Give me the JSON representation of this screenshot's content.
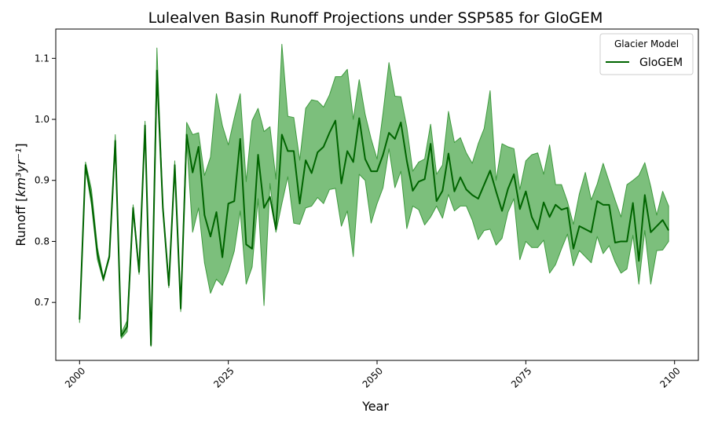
{
  "chart_data": {
    "type": "line",
    "title": "Lulealven Basin Runoff Projections under SSP585 for GloGEM",
    "xlabel": "Year",
    "ylabel_main": "Runoff [",
    "ylabel_units": "km³yr⁻¹",
    "ylabel_end": "]",
    "xlim": [
      1996,
      2104
    ],
    "ylim": [
      0.605,
      1.148
    ],
    "x_ticks": [
      2000,
      2025,
      2050,
      2075,
      2100
    ],
    "y_ticks": [
      0.7,
      0.8,
      0.9,
      1.0,
      1.1
    ],
    "y_tick_labels": [
      "0.7",
      "0.8",
      "0.9",
      "1.0",
      "1.1"
    ],
    "grid": false,
    "legend": {
      "title": "Glacier Model",
      "position": "top-right",
      "entries": [
        "GloGEM"
      ]
    },
    "colors": {
      "line": "#006400",
      "band_fill": "#7cbf7c",
      "band_edge": "#3f9a3f"
    },
    "series": [
      {
        "name": "GloGEM",
        "x": [
          2000,
          2001,
          2002,
          2003,
          2004,
          2005,
          2006,
          2007,
          2008,
          2009,
          2010,
          2011,
          2012,
          2013,
          2014,
          2015,
          2016,
          2017,
          2018,
          2019,
          2020,
          2021,
          2022,
          2023,
          2024,
          2025,
          2026,
          2027,
          2028,
          2029,
          2030,
          2031,
          2032,
          2033,
          2034,
          2035,
          2036,
          2037,
          2038,
          2039,
          2040,
          2041,
          2042,
          2043,
          2044,
          2045,
          2046,
          2047,
          2048,
          2049,
          2050,
          2051,
          2052,
          2053,
          2054,
          2055,
          2056,
          2057,
          2058,
          2059,
          2060,
          2061,
          2062,
          2063,
          2064,
          2065,
          2066,
          2067,
          2068,
          2069,
          2070,
          2071,
          2072,
          2073,
          2074,
          2075,
          2076,
          2077,
          2078,
          2079,
          2080,
          2081,
          2082,
          2083,
          2084,
          2085,
          2086,
          2087,
          2088,
          2089,
          2090,
          2091,
          2092,
          2093,
          2094,
          2095,
          2096,
          2097,
          2098,
          2099
        ],
        "mean": [
          0.672,
          0.925,
          0.87,
          0.78,
          0.738,
          0.775,
          0.965,
          0.645,
          0.66,
          0.855,
          0.75,
          0.99,
          0.63,
          1.08,
          0.855,
          0.728,
          0.925,
          0.69,
          0.975,
          0.913,
          0.955,
          0.843,
          0.808,
          0.848,
          0.774,
          0.862,
          0.866,
          0.968,
          0.795,
          0.788,
          0.942,
          0.855,
          0.873,
          0.82,
          0.975,
          0.948,
          0.948,
          0.862,
          0.933,
          0.912,
          0.946,
          0.955,
          0.978,
          0.998,
          0.895,
          0.948,
          0.93,
          1.002,
          0.935,
          0.915,
          0.915,
          0.942,
          0.978,
          0.968,
          0.995,
          0.932,
          0.883,
          0.898,
          0.902,
          0.96,
          0.866,
          0.883,
          0.944,
          0.882,
          0.905,
          0.885,
          0.876,
          0.87,
          0.893,
          0.916,
          0.882,
          0.85,
          0.886,
          0.91,
          0.853,
          0.882,
          0.84,
          0.82,
          0.864,
          0.84,
          0.86,
          0.852,
          0.855,
          0.788,
          0.825,
          0.82,
          0.815,
          0.866,
          0.86,
          0.86,
          0.798,
          0.8,
          0.8,
          0.863,
          0.768,
          0.876,
          0.815,
          0.825,
          0.835,
          0.818
        ],
        "upper": [
          0.677,
          0.93,
          0.885,
          0.79,
          0.741,
          0.778,
          0.975,
          0.65,
          0.67,
          0.86,
          0.754,
          0.997,
          0.632,
          1.117,
          0.86,
          0.732,
          0.932,
          0.695,
          0.995,
          0.975,
          0.978,
          0.908,
          0.938,
          1.042,
          0.99,
          0.958,
          1.002,
          1.042,
          0.898,
          0.998,
          1.018,
          0.98,
          0.988,
          0.902,
          1.123,
          1.005,
          1.003,
          0.933,
          1.018,
          1.032,
          1.03,
          1.02,
          1.04,
          1.07,
          1.07,
          1.082,
          1.0,
          1.065,
          1.008,
          0.968,
          0.935,
          1.01,
          1.093,
          1.038,
          1.037,
          0.987,
          0.915,
          0.93,
          0.935,
          0.992,
          0.91,
          0.925,
          1.013,
          0.962,
          0.97,
          0.945,
          0.928,
          0.96,
          0.985,
          1.047,
          0.9,
          0.96,
          0.955,
          0.952,
          0.885,
          0.932,
          0.942,
          0.945,
          0.91,
          0.958,
          0.893,
          0.893,
          0.865,
          0.828,
          0.878,
          0.913,
          0.868,
          0.894,
          0.928,
          0.898,
          0.868,
          0.84,
          0.893,
          0.9,
          0.908,
          0.929,
          0.89,
          0.843,
          0.882,
          0.858
        ],
        "lower": [
          0.667,
          0.92,
          0.86,
          0.77,
          0.735,
          0.772,
          0.955,
          0.641,
          0.652,
          0.85,
          0.746,
          0.983,
          0.628,
          1.072,
          0.85,
          0.724,
          0.918,
          0.685,
          0.965,
          0.815,
          0.855,
          0.765,
          0.715,
          0.738,
          0.728,
          0.751,
          0.784,
          0.85,
          0.73,
          0.758,
          0.87,
          0.695,
          0.895,
          0.815,
          0.862,
          0.906,
          0.83,
          0.828,
          0.855,
          0.858,
          0.872,
          0.862,
          0.885,
          0.887,
          0.825,
          0.85,
          0.775,
          0.91,
          0.9,
          0.83,
          0.862,
          0.888,
          0.952,
          0.888,
          0.915,
          0.821,
          0.858,
          0.852,
          0.827,
          0.84,
          0.858,
          0.838,
          0.877,
          0.85,
          0.858,
          0.858,
          0.835,
          0.803,
          0.818,
          0.82,
          0.794,
          0.805,
          0.848,
          0.87,
          0.77,
          0.8,
          0.79,
          0.79,
          0.802,
          0.748,
          0.762,
          0.788,
          0.812,
          0.76,
          0.785,
          0.775,
          0.765,
          0.808,
          0.78,
          0.793,
          0.767,
          0.748,
          0.755,
          0.81,
          0.73,
          0.818,
          0.73,
          0.785,
          0.786,
          0.8
        ]
      }
    ]
  }
}
